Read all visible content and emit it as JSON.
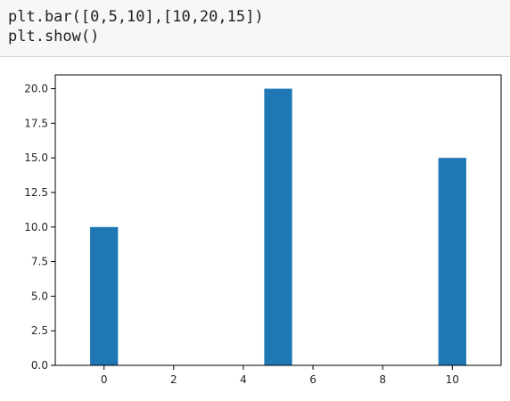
{
  "code": {
    "lines": [
      "plt.bar([0,5,10],[10,20,15])",
      "plt.show()"
    ]
  },
  "chart_data": {
    "type": "bar",
    "x": [
      0,
      5,
      10
    ],
    "values": [
      10,
      20,
      15
    ],
    "bar_width": 0.8,
    "xlim": [
      -1.4,
      11.4
    ],
    "ylim": [
      0,
      21
    ],
    "xticks": [
      0,
      2,
      4,
      6,
      8,
      10
    ],
    "xtick_labels": [
      "0",
      "2",
      "4",
      "6",
      "8",
      "10"
    ],
    "yticks": [
      0,
      2.5,
      5,
      7.5,
      10,
      12.5,
      15,
      17.5,
      20
    ],
    "ytick_labels": [
      "0.0",
      "2.5",
      "5.0",
      "7.5",
      "10.0",
      "12.5",
      "15.0",
      "17.5",
      "20.0"
    ],
    "grid": false,
    "bar_color": "#1f77b4"
  }
}
